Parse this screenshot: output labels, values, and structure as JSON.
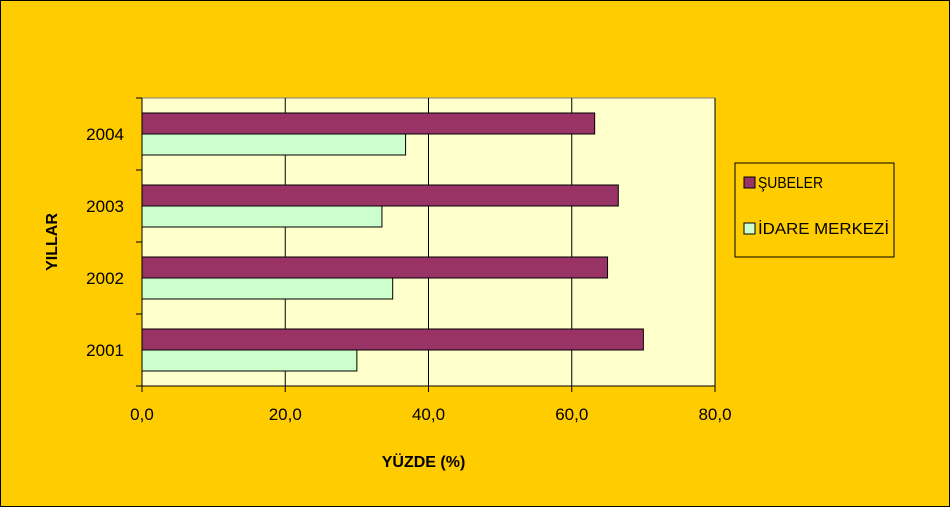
{
  "chart_data": {
    "type": "bar",
    "orientation": "horizontal",
    "categories": [
      "2001",
      "2002",
      "2003",
      "2004"
    ],
    "series": [
      {
        "name": "ŞUBELER",
        "values": [
          70.0,
          65.0,
          66.5,
          63.2
        ],
        "color": "#993366"
      },
      {
        "name": "İDARE MERKEZİ",
        "values": [
          30.0,
          35.0,
          33.5,
          36.8
        ],
        "color": "#ccffcc"
      }
    ],
    "xlabel": "YÜZDE (%)",
    "ylabel": "YILLAR",
    "xlim": [
      0,
      80
    ],
    "xticks": [
      "0,0",
      "20,0",
      "40,0",
      "60,0",
      "80,0"
    ],
    "grid": true,
    "legend": "right",
    "plot_background": "#ffffcc",
    "page_background": "#ffcc00"
  }
}
